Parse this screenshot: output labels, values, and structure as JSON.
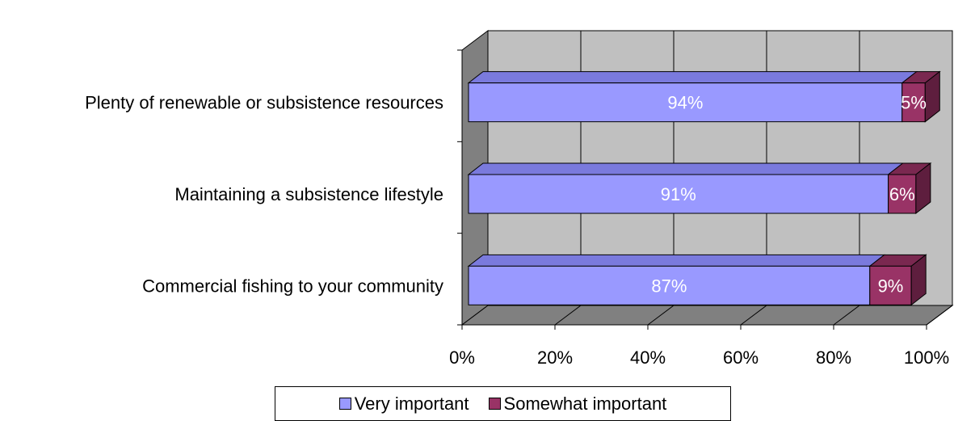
{
  "chart_data": {
    "type": "bar",
    "orientation": "horizontal",
    "stacked": true,
    "three_d": true,
    "categories": [
      "Plenty of renewable or subsistence resources",
      "Maintaining a subsistence lifestyle",
      "Commercial fishing to your community"
    ],
    "series": [
      {
        "name": "Very important",
        "values": [
          94,
          91,
          87
        ],
        "labels": [
          "94%",
          "91%",
          "87%"
        ],
        "color": "#9999FF",
        "label_color": "#FFFFFF"
      },
      {
        "name": "Somewhat important",
        "values": [
          5,
          6,
          9
        ],
        "labels": [
          "5%",
          "6%",
          "9%"
        ],
        "color": "#993366",
        "label_color": "#FFFFFF"
      }
    ],
    "xlim": [
      0,
      100
    ],
    "x_ticks": [
      "0%",
      "20%",
      "40%",
      "60%",
      "80%",
      "100%"
    ],
    "grid": true,
    "wall_color": "#C0C0C0",
    "legend_position": "bottom"
  }
}
